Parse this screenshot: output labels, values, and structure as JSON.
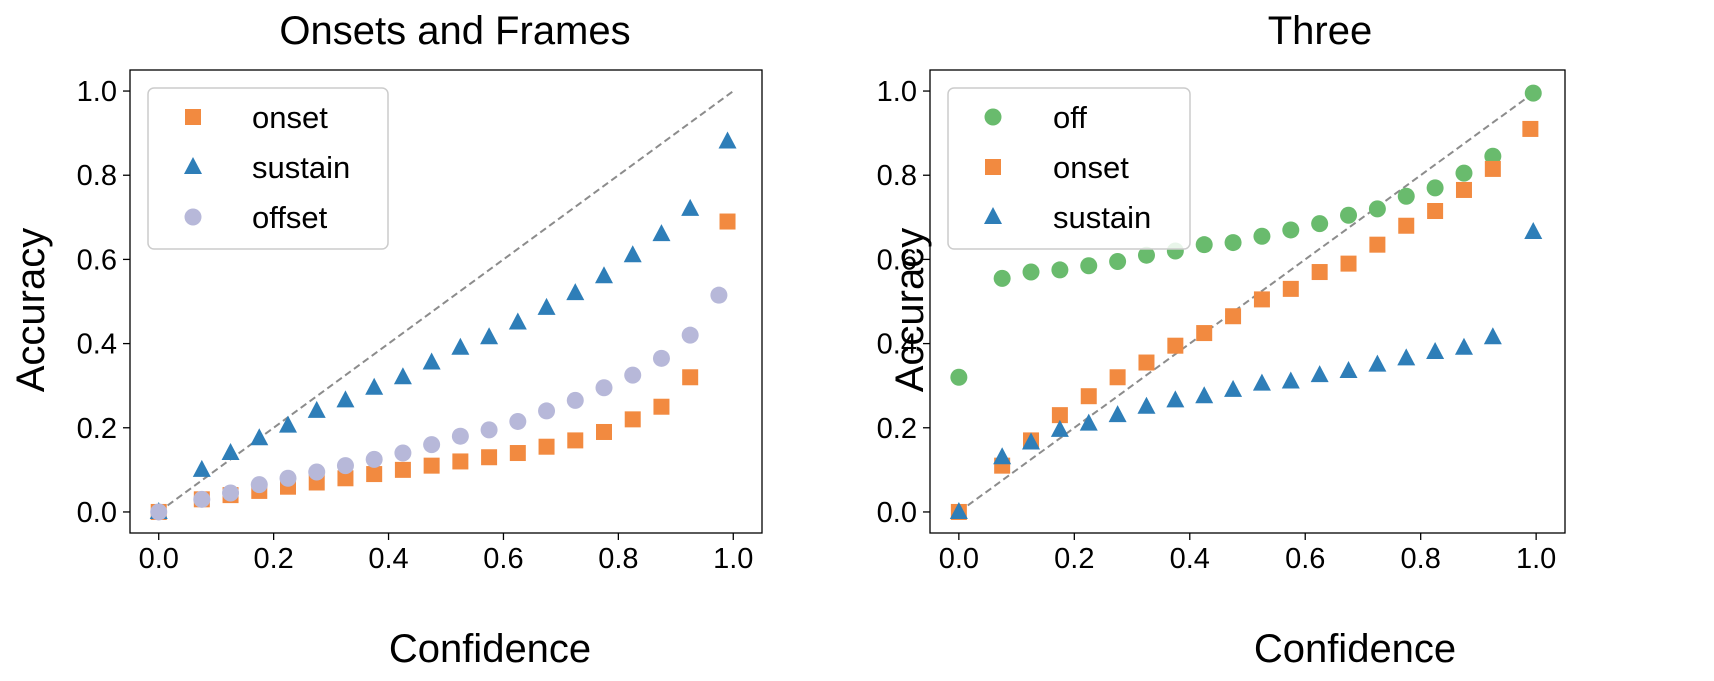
{
  "chart_data": [
    {
      "type": "scatter",
      "title": "Onsets and Frames",
      "xlabel": "Confidence",
      "ylabel": "Accuracy",
      "xlim": [
        -0.05,
        1.05
      ],
      "ylim": [
        -0.05,
        1.05
      ],
      "xticks": [
        "0.0",
        "0.2",
        "0.4",
        "0.6",
        "0.8",
        "1.0"
      ],
      "yticks": [
        "0.0",
        "0.2",
        "0.4",
        "0.6",
        "0.8",
        "1.0"
      ],
      "grid": false,
      "legend_position": "top-left",
      "reference_line": {
        "x": [
          0,
          1
        ],
        "y": [
          0,
          1
        ],
        "style": "dashed",
        "color": "#8c8c8c"
      },
      "series": [
        {
          "name": "onset",
          "marker": "square",
          "color": "#f28a40",
          "x": [
            0.0,
            0.075,
            0.125,
            0.175,
            0.225,
            0.275,
            0.325,
            0.375,
            0.425,
            0.475,
            0.525,
            0.575,
            0.625,
            0.675,
            0.725,
            0.775,
            0.825,
            0.875,
            0.925,
            0.99
          ],
          "y": [
            0.0,
            0.03,
            0.04,
            0.05,
            0.06,
            0.07,
            0.08,
            0.09,
            0.1,
            0.11,
            0.12,
            0.13,
            0.14,
            0.155,
            0.17,
            0.19,
            0.22,
            0.25,
            0.32,
            0.69
          ]
        },
        {
          "name": "sustain",
          "marker": "triangle",
          "color": "#2e7eb8",
          "x": [
            0.0,
            0.075,
            0.125,
            0.175,
            0.225,
            0.275,
            0.325,
            0.375,
            0.425,
            0.475,
            0.525,
            0.575,
            0.625,
            0.675,
            0.725,
            0.775,
            0.825,
            0.875,
            0.925,
            0.99
          ],
          "y": [
            0.0,
            0.1,
            0.14,
            0.175,
            0.205,
            0.24,
            0.265,
            0.295,
            0.32,
            0.355,
            0.39,
            0.415,
            0.45,
            0.485,
            0.52,
            0.56,
            0.61,
            0.66,
            0.72,
            0.88
          ]
        },
        {
          "name": "offset",
          "marker": "circle",
          "color": "#b7b8d9",
          "x": [
            0.0,
            0.075,
            0.125,
            0.175,
            0.225,
            0.275,
            0.325,
            0.375,
            0.425,
            0.475,
            0.525,
            0.575,
            0.625,
            0.675,
            0.725,
            0.775,
            0.825,
            0.875,
            0.925,
            0.975
          ],
          "y": [
            0.0,
            0.03,
            0.045,
            0.065,
            0.08,
            0.095,
            0.11,
            0.125,
            0.14,
            0.16,
            0.18,
            0.195,
            0.215,
            0.24,
            0.265,
            0.295,
            0.325,
            0.365,
            0.42,
            0.515
          ]
        }
      ]
    },
    {
      "type": "scatter",
      "title": "Three",
      "xlabel": "Confidence",
      "ylabel": "Accuracy",
      "xlim": [
        -0.05,
        1.05
      ],
      "ylim": [
        -0.05,
        1.05
      ],
      "xticks": [
        "0.0",
        "0.2",
        "0.4",
        "0.6",
        "0.8",
        "1.0"
      ],
      "yticks": [
        "0.0",
        "0.2",
        "0.4",
        "0.6",
        "0.8",
        "1.0"
      ],
      "grid": false,
      "legend_position": "top-left",
      "reference_line": {
        "x": [
          0,
          1
        ],
        "y": [
          0,
          1
        ],
        "style": "dashed",
        "color": "#8c8c8c"
      },
      "series": [
        {
          "name": "off",
          "marker": "circle",
          "color": "#69bb6d",
          "x": [
            0.0,
            0.075,
            0.125,
            0.175,
            0.225,
            0.275,
            0.325,
            0.375,
            0.425,
            0.475,
            0.525,
            0.575,
            0.625,
            0.675,
            0.725,
            0.775,
            0.825,
            0.875,
            0.925,
            0.995
          ],
          "y": [
            0.32,
            0.555,
            0.57,
            0.575,
            0.585,
            0.595,
            0.61,
            0.62,
            0.635,
            0.64,
            0.655,
            0.67,
            0.685,
            0.705,
            0.72,
            0.75,
            0.77,
            0.805,
            0.845,
            0.995
          ]
        },
        {
          "name": "onset",
          "marker": "square",
          "color": "#f28a40",
          "x": [
            0.0,
            0.075,
            0.125,
            0.175,
            0.225,
            0.275,
            0.325,
            0.375,
            0.425,
            0.475,
            0.525,
            0.575,
            0.625,
            0.675,
            0.725,
            0.775,
            0.825,
            0.875,
            0.925,
            0.99
          ],
          "y": [
            0.0,
            0.11,
            0.17,
            0.23,
            0.275,
            0.32,
            0.355,
            0.395,
            0.425,
            0.465,
            0.505,
            0.53,
            0.57,
            0.59,
            0.635,
            0.68,
            0.715,
            0.765,
            0.815,
            0.91
          ]
        },
        {
          "name": "sustain",
          "marker": "triangle",
          "color": "#2e7eb8",
          "x": [
            0.0,
            0.075,
            0.125,
            0.175,
            0.225,
            0.275,
            0.325,
            0.375,
            0.425,
            0.475,
            0.525,
            0.575,
            0.625,
            0.675,
            0.725,
            0.775,
            0.825,
            0.875,
            0.925,
            0.995
          ],
          "y": [
            0.0,
            0.13,
            0.165,
            0.195,
            0.21,
            0.23,
            0.25,
            0.265,
            0.275,
            0.29,
            0.305,
            0.31,
            0.325,
            0.335,
            0.35,
            0.365,
            0.38,
            0.39,
            0.415,
            0.665
          ]
        }
      ]
    }
  ]
}
